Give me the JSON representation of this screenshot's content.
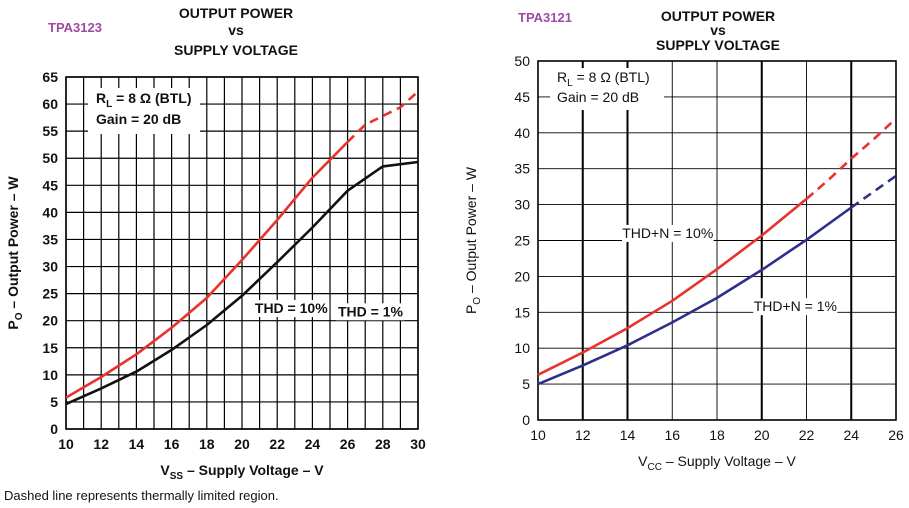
{
  "footnote": "Dashed line represents thermally limited region.",
  "chart_data": [
    {
      "type": "line",
      "tag": "TPA3123",
      "tag_color": "#a04aa6",
      "title_lines": [
        "OUTPUT POWER",
        "vs",
        "SUPPLY VOLTAGE"
      ],
      "xlabel": {
        "main": "V",
        "sub": "SS",
        "rest": " – Supply Voltage – V"
      },
      "ylabel": {
        "main": "P",
        "sub": "O",
        "rest": " – Output Power – W"
      },
      "xlim": [
        10,
        30
      ],
      "ylim": [
        0,
        65
      ],
      "xticks": [
        10,
        12,
        14,
        16,
        18,
        20,
        22,
        24,
        26,
        28,
        30
      ],
      "yticks": [
        0,
        5,
        10,
        15,
        20,
        25,
        30,
        35,
        40,
        45,
        50,
        55,
        60,
        65
      ],
      "x_minor_grid_step": 1,
      "grid": true,
      "conditions": [
        {
          "main": "R",
          "sub": "L",
          "rest": " = 8 Ω (BTL)"
        },
        {
          "main": "Gain = 20 dB",
          "sub": "",
          "rest": ""
        }
      ],
      "series": [
        {
          "name": "THD = 10%",
          "color": "#e8322d",
          "x": [
            10,
            12,
            14,
            16,
            18,
            20,
            22,
            24,
            26
          ],
          "y": [
            5.8,
            9.6,
            13.8,
            18.7,
            24.2,
            31.2,
            38.6,
            46.4,
            53.0
          ],
          "dashed_x": [
            26,
            27,
            28,
            29,
            30
          ],
          "dashed_y": [
            53.0,
            56.2,
            57.8,
            59.4,
            62.3
          ],
          "label_at": [
            22.8,
            21.6
          ]
        },
        {
          "name": "THD = 1%",
          "color": "#111111",
          "x": [
            10,
            12,
            14,
            16,
            18,
            20,
            22,
            24,
            26,
            28,
            30
          ],
          "y": [
            4.6,
            7.5,
            10.6,
            14.6,
            19.2,
            24.6,
            30.8,
            37.2,
            44.0,
            48.5,
            49.3
          ],
          "dashed_x": [],
          "dashed_y": [],
          "label_at": [
            27.3,
            21.0
          ]
        }
      ]
    },
    {
      "type": "line",
      "tag": "TPA3121",
      "tag_color": "#a04aa6",
      "title_lines": [
        "OUTPUT POWER",
        "vs",
        "SUPPLY VOLTAGE"
      ],
      "xlabel": {
        "main": "V",
        "sub": "CC",
        "rest": " – Supply Voltage – V"
      },
      "ylabel": {
        "main": "P",
        "sub": "O",
        "rest": " – Output Power – W"
      },
      "xlim": [
        10,
        26
      ],
      "ylim": [
        0,
        50
      ],
      "xticks": [
        10,
        12,
        14,
        16,
        18,
        20,
        22,
        24,
        26
      ],
      "yticks": [
        0,
        5,
        10,
        15,
        20,
        25,
        30,
        35,
        40,
        45,
        50
      ],
      "x_minor_grid_step": 2,
      "grid": true,
      "conditions": [
        {
          "main": "R",
          "sub": "L",
          "rest": " = 8 Ω (BTL)"
        },
        {
          "main": "Gain = 20 dB",
          "sub": "",
          "rest": ""
        }
      ],
      "series": [
        {
          "name": "THD+N = 10%",
          "color": "#e8322d",
          "x": [
            10,
            12,
            14,
            16,
            18,
            20,
            22
          ],
          "y": [
            6.3,
            9.4,
            12.8,
            16.6,
            21.0,
            25.7,
            30.8
          ],
          "dashed_x": [
            22,
            23,
            24,
            25,
            26
          ],
          "dashed_y": [
            30.8,
            33.5,
            36.4,
            39.1,
            42.0
          ],
          "label_at": [
            15.8,
            25.5
          ]
        },
        {
          "name": "THD+N = 1%",
          "color": "#2e2f8a",
          "x": [
            10,
            12,
            14,
            16,
            18,
            20,
            22,
            24
          ],
          "y": [
            5.0,
            7.6,
            10.4,
            13.6,
            17.0,
            20.9,
            25.1,
            29.6
          ],
          "dashed_x": [
            24,
            25,
            26
          ],
          "dashed_y": [
            29.6,
            31.8,
            34.0
          ],
          "label_at": [
            21.5,
            15.3
          ]
        }
      ]
    }
  ]
}
